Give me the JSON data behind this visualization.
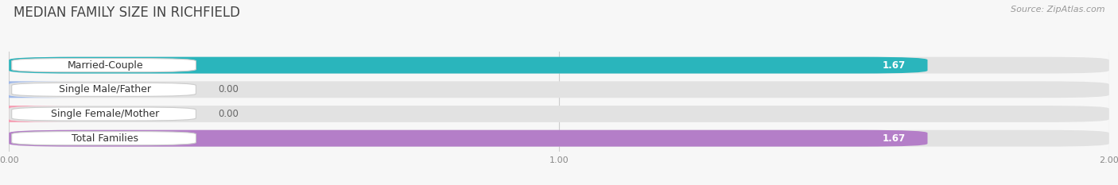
{
  "title": "MEDIAN FAMILY SIZE IN RICHFIELD",
  "source": "Source: ZipAtlas.com",
  "categories": [
    "Married-Couple",
    "Single Male/Father",
    "Single Female/Mother",
    "Total Families"
  ],
  "values": [
    1.67,
    0.0,
    0.0,
    1.67
  ],
  "bar_colors": [
    "#2ab5bc",
    "#9fb8e8",
    "#f5a0b5",
    "#b47ec8"
  ],
  "xlim": [
    0,
    2.0
  ],
  "xticks": [
    0.0,
    1.0,
    2.0
  ],
  "xtick_labels": [
    "0.00",
    "1.00",
    "2.00"
  ],
  "bg_color": "#f7f7f7",
  "bar_height": 0.68,
  "value_fontsize": 8.5,
  "label_fontsize": 9,
  "title_fontsize": 12,
  "source_fontsize": 8
}
